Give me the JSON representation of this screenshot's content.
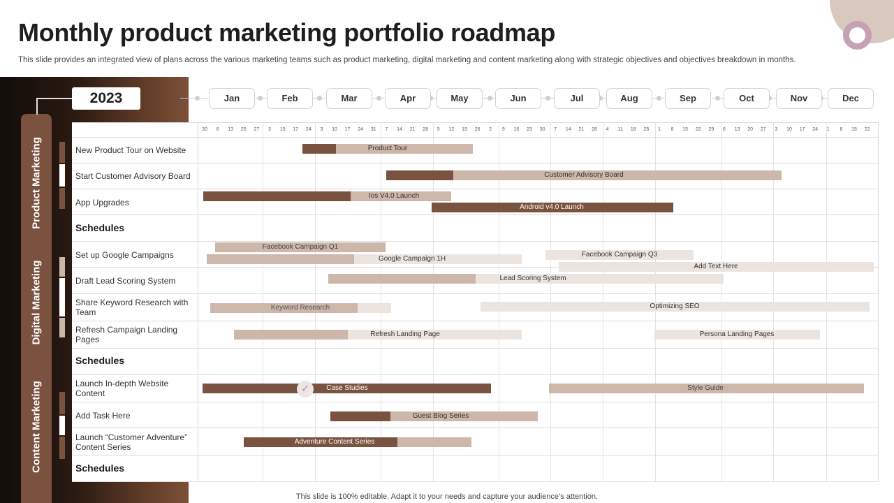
{
  "title": "Monthly product marketing portfolio roadmap",
  "subtitle": "This slide provides an integrated view of plans across the various marketing teams such as product marketing, digital marketing and content marketing along with strategic objectives and objectives breakdown in months.",
  "year": "2023",
  "months": [
    "Jan",
    "Feb",
    "Mar",
    "Apr",
    "May",
    "Jun",
    "Jul",
    "Aug",
    "Sep",
    "Oct",
    "Nov",
    "Dec"
  ],
  "days": [
    "30",
    "6",
    "13",
    "20",
    "27",
    "3",
    "10",
    "17",
    "24",
    "3",
    "10",
    "17",
    "24",
    "31",
    "7",
    "14",
    "21",
    "28",
    "5",
    "12",
    "19",
    "26",
    "2",
    "9",
    "16",
    "23",
    "30",
    "7",
    "14",
    "21",
    "28",
    "4",
    "11",
    "18",
    "25",
    "1",
    "8",
    "15",
    "22",
    "29",
    "6",
    "13",
    "20",
    "27",
    "3",
    "10",
    "17",
    "24",
    "1",
    "8",
    "15",
    "22"
  ],
  "categories": [
    "Product Marketing",
    "Digital Marketing",
    "Content Marketing"
  ],
  "tasks": [
    "New Product Tour on Website",
    "Start Customer Advisory Board",
    "App Upgrades",
    "Schedules",
    "Set up Google Campaigns",
    "Draft Lead Scoring System",
    "Share Keyword Research with Team",
    "Refresh Campaign Landing Pages",
    "Schedules",
    "Launch In-depth Website Content",
    "Add Task Here",
    "Launch “Customer Adventure” Content Series",
    "Schedules"
  ],
  "bars": [
    "Product Tour",
    "Customer Advisory Board",
    "Ios V4.0 Launch",
    "Android v4.0 Launch",
    "Facebook Campaign  Q1",
    "Google Campaign 1H",
    "Facebook Campaign  Q3",
    "Add Text Here",
    "Lead Scoring System",
    "Keyword Research",
    "Optimizing SEO",
    "Refresh Landing Page",
    "Persona Landing Pages",
    "Case Studies",
    "Style Guide",
    "Guest Blog Series",
    "Adventure Content Series"
  ],
  "colors": {
    "dark": "#7a5240",
    "mid": "#cdb7ab",
    "light": "#ebe4df",
    "accent_ring": "#c5a1b6"
  },
  "icons": {
    "check": "check-icon"
  },
  "footer": "This slide is 100% editable.  Adapt it to your needs and capture your audience’s attention."
}
